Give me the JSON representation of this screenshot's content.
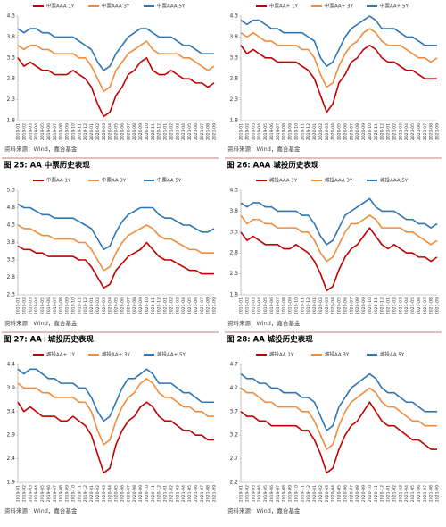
{
  "captions": [
    "图 25: AA 中票历史表现",
    "图 26: AAA 城投历史表现",
    "图 27: AA+城投历史表现",
    "图 28: AA 城投历史表现"
  ],
  "chart_data": [
    {
      "type": "line",
      "source": "资料来源：Wind，嘉合基金",
      "ylim": [
        1.8,
        4.3
      ],
      "yticks": [
        1.8,
        2.3,
        2.8,
        3.3,
        3.8,
        4.3
      ],
      "categories": [
        "2019-01",
        "2019-02",
        "2019-03",
        "2019-04",
        "2019-05",
        "2019-06",
        "2019-07",
        "2019-08",
        "2019-09",
        "2019-10",
        "2019-11",
        "2019-12",
        "2020-01",
        "2020-02",
        "2020-03",
        "2020-04",
        "2020-05",
        "2020-06",
        "2020-07",
        "2020-08",
        "2020-09",
        "2020-10",
        "2020-11",
        "2020-12",
        "2021-01",
        "2021-02",
        "2021-03",
        "2021-04",
        "2021-05",
        "2021-06",
        "2021-07",
        "2021-08",
        "2021-09"
      ],
      "series": [
        {
          "name": "中票AAA 1Y",
          "color": "#c00000",
          "values": [
            3.3,
            3.1,
            3.2,
            3.1,
            3.0,
            3.0,
            2.9,
            2.9,
            2.9,
            3.0,
            2.9,
            2.8,
            2.6,
            2.2,
            1.9,
            2.0,
            2.4,
            2.6,
            2.9,
            3.0,
            3.2,
            3.3,
            3.0,
            2.9,
            2.9,
            3.0,
            2.9,
            2.8,
            2.8,
            2.7,
            2.7,
            2.6,
            2.7
          ]
        },
        {
          "name": "中票AAA 3Y",
          "color": "#f08c3c",
          "values": [
            3.6,
            3.5,
            3.6,
            3.6,
            3.5,
            3.5,
            3.4,
            3.4,
            3.4,
            3.4,
            3.3,
            3.3,
            3.1,
            2.8,
            2.5,
            2.6,
            3.0,
            3.2,
            3.4,
            3.5,
            3.6,
            3.7,
            3.5,
            3.4,
            3.4,
            3.4,
            3.4,
            3.3,
            3.3,
            3.2,
            3.1,
            3.0,
            3.1
          ]
        },
        {
          "name": "中票AAA 5Y",
          "color": "#2e75b6",
          "values": [
            4.0,
            3.9,
            4.0,
            4.0,
            3.9,
            3.9,
            3.8,
            3.8,
            3.8,
            3.8,
            3.7,
            3.6,
            3.5,
            3.2,
            3.0,
            3.1,
            3.4,
            3.6,
            3.8,
            3.9,
            4.0,
            4.0,
            3.9,
            3.8,
            3.8,
            3.8,
            3.7,
            3.6,
            3.6,
            3.5,
            3.4,
            3.4,
            3.4
          ]
        }
      ]
    },
    {
      "type": "line",
      "source": "资料来源：Wind，嘉合基金",
      "ylim": [
        1.8,
        4.3
      ],
      "yticks": [
        1.8,
        2.3,
        2.8,
        3.3,
        3.8,
        4.3
      ],
      "categories": [
        "2019-01",
        "2019-02",
        "2019-03",
        "2019-04",
        "2019-05",
        "2019-06",
        "2019-07",
        "2019-08",
        "2019-09",
        "2019-10",
        "2019-11",
        "2019-12",
        "2020-01",
        "2020-02",
        "2020-03",
        "2020-04",
        "2020-05",
        "2020-06",
        "2020-07",
        "2020-08",
        "2020-09",
        "2020-10",
        "2020-11",
        "2020-12",
        "2021-01",
        "2021-02",
        "2021-03",
        "2021-04",
        "2021-05",
        "2021-06",
        "2021-07",
        "2021-08",
        "2021-09"
      ],
      "series": [
        {
          "name": "中票AA+ 1Y",
          "color": "#c00000",
          "values": [
            3.6,
            3.4,
            3.5,
            3.4,
            3.3,
            3.3,
            3.2,
            3.2,
            3.2,
            3.2,
            3.1,
            3.0,
            2.8,
            2.4,
            2.0,
            2.2,
            2.7,
            2.9,
            3.2,
            3.3,
            3.5,
            3.6,
            3.5,
            3.3,
            3.2,
            3.2,
            3.1,
            3.0,
            3.0,
            2.9,
            2.8,
            2.8,
            2.8
          ]
        },
        {
          "name": "中票AA+ 3Y",
          "color": "#f08c3c",
          "values": [
            3.9,
            3.8,
            3.9,
            3.8,
            3.7,
            3.7,
            3.6,
            3.6,
            3.6,
            3.6,
            3.5,
            3.5,
            3.3,
            2.9,
            2.6,
            2.7,
            3.1,
            3.4,
            3.6,
            3.7,
            3.9,
            4.0,
            3.9,
            3.7,
            3.6,
            3.6,
            3.6,
            3.5,
            3.4,
            3.3,
            3.3,
            3.2,
            3.3
          ]
        },
        {
          "name": "中票AA+ 5Y",
          "color": "#2e75b6",
          "values": [
            4.2,
            4.1,
            4.2,
            4.2,
            4.1,
            4.0,
            4.0,
            3.9,
            3.9,
            3.9,
            3.9,
            3.8,
            3.7,
            3.3,
            3.1,
            3.2,
            3.5,
            3.8,
            4.0,
            4.1,
            4.2,
            4.3,
            4.2,
            4.0,
            4.0,
            4.0,
            3.9,
            3.8,
            3.8,
            3.7,
            3.6,
            3.6,
            3.6
          ]
        }
      ]
    },
    {
      "type": "line",
      "source": "资料来源：Wind，嘉合基金",
      "ylim": [
        2.3,
        5.3
      ],
      "yticks": [
        2.3,
        2.8,
        3.3,
        3.8,
        4.3,
        4.8,
        5.3
      ],
      "categories": [
        "2019-01",
        "2019-02",
        "2019-03",
        "2019-04",
        "2019-05",
        "2019-06",
        "2019-07",
        "2019-08",
        "2019-09",
        "2019-10",
        "2019-11",
        "2019-12",
        "2020-01",
        "2020-02",
        "2020-03",
        "2020-04",
        "2020-05",
        "2020-06",
        "2020-07",
        "2020-08",
        "2020-09",
        "2020-10",
        "2020-11",
        "2020-12",
        "2021-01",
        "2021-02",
        "2021-03",
        "2021-04",
        "2021-05",
        "2021-06",
        "2021-07",
        "2021-08",
        "2021-09"
      ],
      "series": [
        {
          "name": "中票AA 1Y",
          "color": "#c00000",
          "values": [
            3.7,
            3.6,
            3.6,
            3.5,
            3.5,
            3.4,
            3.4,
            3.4,
            3.4,
            3.4,
            3.3,
            3.3,
            3.1,
            2.8,
            2.5,
            2.6,
            3.0,
            3.2,
            3.4,
            3.5,
            3.6,
            3.8,
            3.6,
            3.4,
            3.3,
            3.3,
            3.2,
            3.1,
            3.0,
            3.0,
            2.9,
            2.9,
            2.9
          ]
        },
        {
          "name": "中票AA 3Y",
          "color": "#f08c3c",
          "values": [
            4.3,
            4.2,
            4.2,
            4.1,
            4.0,
            4.0,
            3.9,
            3.9,
            3.9,
            3.9,
            3.8,
            3.8,
            3.6,
            3.3,
            3.0,
            3.1,
            3.5,
            3.8,
            4.0,
            4.1,
            4.2,
            4.3,
            4.2,
            4.0,
            3.9,
            3.9,
            3.8,
            3.7,
            3.6,
            3.6,
            3.5,
            3.5,
            3.5
          ]
        },
        {
          "name": "中票AA 5Y",
          "color": "#2e75b6",
          "values": [
            4.9,
            4.8,
            4.8,
            4.7,
            4.6,
            4.6,
            4.5,
            4.5,
            4.5,
            4.5,
            4.4,
            4.3,
            4.2,
            3.9,
            3.6,
            3.7,
            4.1,
            4.4,
            4.6,
            4.7,
            4.8,
            4.8,
            4.8,
            4.6,
            4.5,
            4.5,
            4.4,
            4.3,
            4.3,
            4.2,
            4.1,
            4.1,
            4.2
          ]
        }
      ]
    },
    {
      "type": "line",
      "source": "资料来源：Wind，嘉合基金",
      "ylim": [
        1.8,
        4.3
      ],
      "yticks": [
        1.8,
        2.3,
        2.8,
        3.3,
        3.8,
        4.3
      ],
      "categories": [
        "2019-01",
        "2019-02",
        "2019-03",
        "2019-04",
        "2019-05",
        "2019-06",
        "2019-07",
        "2019-08",
        "2019-09",
        "2019-10",
        "2019-11",
        "2019-12",
        "2020-01",
        "2020-02",
        "2020-03",
        "2020-04",
        "2020-05",
        "2020-06",
        "2020-07",
        "2020-08",
        "2020-09",
        "2020-10",
        "2020-11",
        "2020-12",
        "2021-01",
        "2021-02",
        "2021-03",
        "2021-04",
        "2021-05",
        "2021-06",
        "2021-07",
        "2021-08",
        "2021-09"
      ],
      "series": [
        {
          "name": "城投AAA 1Y",
          "color": "#c00000",
          "values": [
            3.3,
            3.1,
            3.2,
            3.1,
            3.0,
            3.0,
            3.0,
            2.9,
            2.9,
            3.0,
            2.9,
            2.8,
            2.6,
            2.3,
            1.9,
            2.0,
            2.4,
            2.7,
            2.9,
            3.0,
            3.2,
            3.4,
            3.2,
            3.0,
            2.9,
            3.0,
            2.9,
            2.8,
            2.8,
            2.7,
            2.7,
            2.6,
            2.7
          ]
        },
        {
          "name": "城投AAA 3Y",
          "color": "#f08c3c",
          "values": [
            3.7,
            3.5,
            3.6,
            3.6,
            3.5,
            3.5,
            3.4,
            3.4,
            3.4,
            3.4,
            3.3,
            3.3,
            3.1,
            2.8,
            2.6,
            2.7,
            3.0,
            3.3,
            3.5,
            3.5,
            3.6,
            3.7,
            3.6,
            3.4,
            3.4,
            3.4,
            3.4,
            3.3,
            3.3,
            3.2,
            3.1,
            3.0,
            3.1
          ]
        },
        {
          "name": "城投AAA 5Y",
          "color": "#2e75b6",
          "values": [
            4.0,
            3.9,
            4.0,
            4.0,
            3.9,
            3.9,
            3.8,
            3.8,
            3.8,
            3.8,
            3.7,
            3.7,
            3.5,
            3.2,
            3.0,
            3.1,
            3.4,
            3.7,
            3.8,
            3.9,
            4.0,
            4.1,
            3.9,
            3.8,
            3.8,
            3.8,
            3.7,
            3.6,
            3.6,
            3.5,
            3.5,
            3.4,
            3.5
          ]
        }
      ]
    },
    {
      "type": "line",
      "source": "资料来源：Wind，嘉合基金",
      "ylim": [
        1.9,
        4.4
      ],
      "yticks": [
        1.9,
        2.4,
        2.9,
        3.4,
        3.9,
        4.4
      ],
      "categories": [
        "2019-01",
        "2019-02",
        "2019-03",
        "2019-04",
        "2019-05",
        "2019-06",
        "2019-07",
        "2019-08",
        "2019-09",
        "2019-10",
        "2019-11",
        "2019-12",
        "2020-01",
        "2020-02",
        "2020-03",
        "2020-04",
        "2020-05",
        "2020-06",
        "2020-07",
        "2020-08",
        "2020-09",
        "2020-10",
        "2020-11",
        "2020-12",
        "2021-01",
        "2021-02",
        "2021-03",
        "2021-04",
        "2021-05",
        "2021-06",
        "2021-07",
        "2021-08",
        "2021-09"
      ],
      "series": [
        {
          "name": "城投AA+ 1Y",
          "color": "#c00000",
          "values": [
            3.6,
            3.4,
            3.5,
            3.4,
            3.3,
            3.3,
            3.3,
            3.2,
            3.2,
            3.3,
            3.2,
            3.1,
            2.9,
            2.5,
            2.1,
            2.2,
            2.7,
            3.0,
            3.2,
            3.3,
            3.5,
            3.6,
            3.5,
            3.3,
            3.2,
            3.2,
            3.1,
            3.0,
            3.0,
            2.9,
            2.9,
            2.8,
            2.8
          ]
        },
        {
          "name": "城投AA+ 3Y",
          "color": "#f08c3c",
          "values": [
            4.0,
            3.9,
            3.9,
            3.9,
            3.8,
            3.8,
            3.7,
            3.7,
            3.7,
            3.7,
            3.6,
            3.6,
            3.4,
            3.0,
            2.7,
            2.8,
            3.2,
            3.5,
            3.7,
            3.8,
            4.0,
            4.1,
            4.0,
            3.8,
            3.7,
            3.7,
            3.6,
            3.5,
            3.5,
            3.4,
            3.4,
            3.3,
            3.3
          ]
        },
        {
          "name": "城投AA+ 5Y",
          "color": "#2e75b6",
          "values": [
            4.3,
            4.2,
            4.3,
            4.3,
            4.2,
            4.1,
            4.1,
            4.0,
            4.0,
            4.0,
            3.9,
            3.9,
            3.7,
            3.4,
            3.2,
            3.3,
            3.6,
            3.9,
            4.1,
            4.1,
            4.2,
            4.3,
            4.2,
            4.0,
            4.0,
            4.0,
            3.9,
            3.8,
            3.8,
            3.7,
            3.6,
            3.6,
            3.6
          ]
        }
      ]
    },
    {
      "type": "line",
      "source": "资料来源：Wind，嘉合基金",
      "ylim": [
        2.2,
        4.7
      ],
      "yticks": [
        2.2,
        2.7,
        3.2,
        3.7,
        4.2,
        4.7
      ],
      "categories": [
        "2019-01",
        "2019-02",
        "2019-03",
        "2019-04",
        "2019-05",
        "2019-06",
        "2019-07",
        "2019-08",
        "2019-09",
        "2019-10",
        "2019-11",
        "2019-12",
        "2020-01",
        "2020-02",
        "2020-03",
        "2020-04",
        "2020-05",
        "2020-06",
        "2020-07",
        "2020-08",
        "2020-09",
        "2020-10",
        "2020-11",
        "2020-12",
        "2021-01",
        "2021-02",
        "2021-03",
        "2021-04",
        "2021-05",
        "2021-06",
        "2021-07",
        "2021-08",
        "2021-09"
      ],
      "series": [
        {
          "name": "城投AA 1Y",
          "color": "#c00000",
          "values": [
            3.7,
            3.6,
            3.6,
            3.5,
            3.5,
            3.4,
            3.4,
            3.4,
            3.4,
            3.4,
            3.3,
            3.3,
            3.1,
            2.8,
            2.4,
            2.5,
            2.9,
            3.2,
            3.4,
            3.5,
            3.7,
            3.9,
            3.7,
            3.5,
            3.4,
            3.4,
            3.3,
            3.2,
            3.1,
            3.1,
            3.0,
            2.9,
            2.9
          ]
        },
        {
          "name": "城投AA 3Y",
          "color": "#f08c3c",
          "values": [
            4.2,
            4.1,
            4.1,
            4.0,
            3.9,
            3.9,
            3.8,
            3.8,
            3.8,
            3.8,
            3.7,
            3.7,
            3.5,
            3.2,
            2.9,
            3.0,
            3.4,
            3.7,
            3.9,
            4.0,
            4.1,
            4.2,
            4.1,
            3.9,
            3.8,
            3.8,
            3.7,
            3.6,
            3.5,
            3.5,
            3.4,
            3.4,
            3.4
          ]
        },
        {
          "name": "城投AA 5Y",
          "color": "#2e75b6",
          "values": [
            4.5,
            4.4,
            4.4,
            4.3,
            4.3,
            4.2,
            4.2,
            4.1,
            4.1,
            4.1,
            4.0,
            4.0,
            3.9,
            3.6,
            3.3,
            3.4,
            3.8,
            4.0,
            4.2,
            4.3,
            4.4,
            4.5,
            4.4,
            4.2,
            4.1,
            4.1,
            4.0,
            3.9,
            3.9,
            3.8,
            3.7,
            3.7,
            3.7
          ]
        }
      ]
    }
  ]
}
